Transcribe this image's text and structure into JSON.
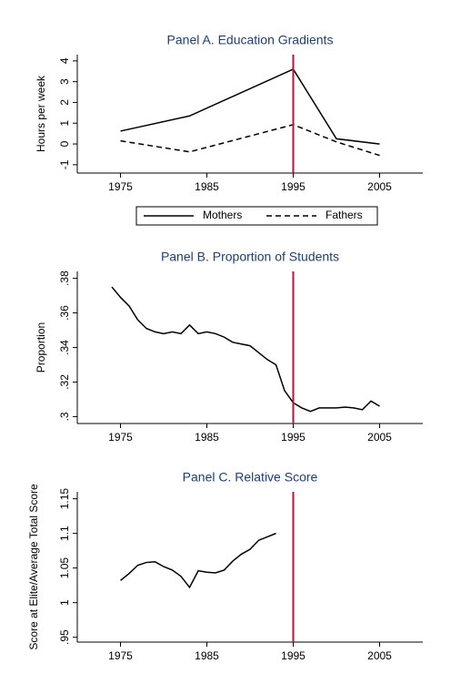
{
  "chart_data": [
    {
      "type": "line",
      "title": "Panel A. Education Gradients",
      "y_label": "Hours per week",
      "x": [
        1975,
        1983,
        1995,
        2000,
        2005
      ],
      "series": [
        {
          "name": "Mothers",
          "color": "#000000",
          "dash": false,
          "values": [
            0.62,
            1.35,
            3.6,
            0.25,
            0
          ]
        },
        {
          "name": "Fathers",
          "color": "#000000",
          "dash": true,
          "values": [
            0.15,
            -0.38,
            0.93,
            0.1,
            -0.55
          ]
        }
      ],
      "xlim": [
        1970,
        2010
      ],
      "xticks": [
        1975,
        1985,
        1995,
        2005
      ],
      "ylim": [
        -1.4,
        4.3
      ],
      "yticks": [
        -1,
        0,
        1,
        2,
        3,
        4
      ],
      "vline": 1995,
      "vline_color": "#b0173f",
      "legend": "bottom"
    },
    {
      "type": "line",
      "title": "Panel B. Proportion of Students",
      "y_label": "Proportion",
      "x": [
        1974,
        1975,
        1976,
        1977,
        1978,
        1979,
        1980,
        1981,
        1982,
        1983,
        1984,
        1985,
        1986,
        1987,
        1988,
        1989,
        1990,
        1991,
        1992,
        1993,
        1994,
        1995,
        1996,
        1997,
        1998,
        1999,
        2000,
        2001,
        2002,
        2003,
        2004,
        2005
      ],
      "series": [
        {
          "name": "Proportion",
          "color": "#000000",
          "dash": false,
          "values": [
            0.375,
            0.369,
            0.364,
            0.356,
            0.351,
            0.349,
            0.348,
            0.349,
            0.348,
            0.353,
            0.348,
            0.349,
            0.348,
            0.346,
            0.343,
            0.342,
            0.341,
            0.337,
            0.333,
            0.33,
            0.315,
            0.308,
            0.305,
            0.303,
            0.305,
            0.305,
            0.305,
            0.3055,
            0.305,
            0.304,
            0.309,
            0.306
          ]
        }
      ],
      "xlim": [
        1970,
        2010
      ],
      "xticks": [
        1975,
        1985,
        1995,
        2005
      ],
      "ylim": [
        0.296,
        0.384
      ],
      "yticks": [
        {
          "value": 0.3,
          "label": ".3"
        },
        {
          "value": 0.32,
          "label": ".32"
        },
        {
          "value": 0.34,
          "label": ".34"
        },
        {
          "value": 0.36,
          "label": ".36"
        },
        {
          "value": 0.38,
          "label": ".38"
        }
      ],
      "vline": 1995,
      "vline_color": "#b0173f"
    },
    {
      "type": "line",
      "title": "Panel C. Relative Score",
      "y_label": "Score at Elite/Average Total Score",
      "x": [
        1975,
        1976,
        1977,
        1978,
        1979,
        1980,
        1981,
        1982,
        1983,
        1984,
        1985,
        1986,
        1987,
        1988,
        1989,
        1990,
        1991,
        1992,
        1993
      ],
      "series": [
        {
          "name": "Relative Score",
          "color": "#000000",
          "dash": false,
          "values": [
            1.032,
            1.042,
            1.054,
            1.058,
            1.059,
            1.052,
            1.047,
            1.038,
            1.022,
            1.046,
            1.044,
            1.043,
            1.047,
            1.06,
            1.07,
            1.077,
            1.09,
            1.095,
            1.1
          ]
        }
      ],
      "xlim": [
        1970,
        2010
      ],
      "xticks": [
        1975,
        1985,
        1995,
        2005
      ],
      "ylim": [
        0.943,
        1.16
      ],
      "yticks": [
        {
          "value": 0.95,
          "label": ".95"
        },
        1,
        1.05,
        1.1,
        1.15
      ],
      "vline": 1995,
      "vline_color": "#b0173f"
    }
  ]
}
